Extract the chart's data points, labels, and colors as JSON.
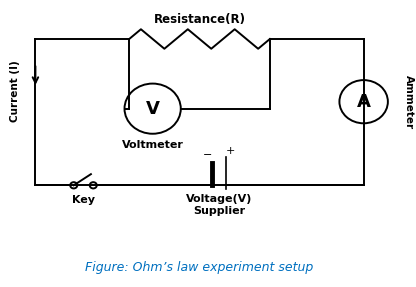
{
  "background_color": "#ffffff",
  "line_color": "#000000",
  "figure_caption": "Figure: Ohm’s law experiment setup",
  "caption_color": "#0070c0",
  "caption_fontsize": 9,
  "title_resistance": "Resistance(R)",
  "label_voltmeter": "Voltmeter",
  "label_ammeter": "Ammeter",
  "label_key": "Key",
  "label_voltage": "Voltage(V)\nSupplier",
  "label_current": "Current (I)"
}
